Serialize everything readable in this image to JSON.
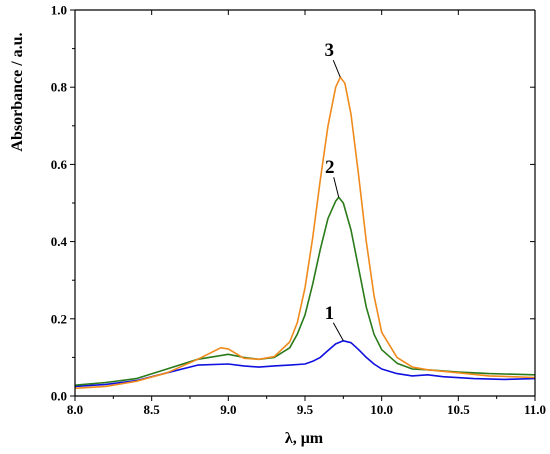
{
  "chart_data": {
    "type": "line",
    "xlabel": "λ, μm",
    "ylabel": "Absorbance / a.u.",
    "xlim": [
      8.0,
      11.0
    ],
    "ylim": [
      0.0,
      1.0
    ],
    "xticks": [
      "8.0",
      "8.5",
      "9.0",
      "9.5",
      "10.0",
      "10.5",
      "11.0"
    ],
    "yticks": [
      "0.0",
      "0.2",
      "0.4",
      "0.6",
      "0.8",
      "1.0"
    ],
    "grid": false,
    "curve_labels": [
      {
        "text": "1",
        "series": 0,
        "anchor_x": 9.75,
        "anchor_y": 0.143
      },
      {
        "text": "2",
        "series": 1,
        "anchor_x": 9.72,
        "anchor_y": 0.515
      },
      {
        "text": "3",
        "series": 2,
        "anchor_x": 9.73,
        "anchor_y": 0.826
      }
    ],
    "series": [
      {
        "color": "#1010e0",
        "x": [
          8.0,
          8.2,
          8.4,
          8.6,
          8.8,
          9.0,
          9.1,
          9.2,
          9.3,
          9.4,
          9.5,
          9.55,
          9.6,
          9.65,
          9.7,
          9.75,
          9.8,
          9.85,
          9.9,
          9.95,
          10.0,
          10.1,
          10.2,
          10.3,
          10.4,
          10.6,
          10.8,
          11.0
        ],
        "y": [
          0.025,
          0.03,
          0.04,
          0.06,
          0.08,
          0.083,
          0.078,
          0.075,
          0.078,
          0.08,
          0.083,
          0.09,
          0.1,
          0.118,
          0.135,
          0.143,
          0.138,
          0.12,
          0.1,
          0.083,
          0.07,
          0.058,
          0.052,
          0.055,
          0.05,
          0.045,
          0.043,
          0.045
        ]
      },
      {
        "color": "#2a7a1a",
        "x": [
          8.0,
          8.2,
          8.4,
          8.6,
          8.8,
          9.0,
          9.1,
          9.2,
          9.3,
          9.4,
          9.45,
          9.5,
          9.55,
          9.6,
          9.65,
          9.7,
          9.72,
          9.75,
          9.8,
          9.85,
          9.9,
          9.95,
          10.0,
          10.1,
          10.2,
          10.3,
          10.5,
          10.7,
          11.0
        ],
        "y": [
          0.028,
          0.035,
          0.045,
          0.07,
          0.095,
          0.108,
          0.1,
          0.095,
          0.1,
          0.125,
          0.16,
          0.21,
          0.29,
          0.38,
          0.46,
          0.505,
          0.515,
          0.5,
          0.43,
          0.33,
          0.23,
          0.16,
          0.12,
          0.085,
          0.07,
          0.068,
          0.062,
          0.058,
          0.055
        ]
      },
      {
        "color": "#f08a1c",
        "x": [
          8.0,
          8.2,
          8.4,
          8.6,
          8.8,
          8.95,
          9.0,
          9.1,
          9.2,
          9.3,
          9.4,
          9.45,
          9.5,
          9.55,
          9.6,
          9.65,
          9.7,
          9.73,
          9.76,
          9.8,
          9.85,
          9.9,
          9.95,
          10.0,
          10.1,
          10.2,
          10.3,
          10.5,
          10.7,
          11.0
        ],
        "y": [
          0.02,
          0.025,
          0.038,
          0.06,
          0.095,
          0.125,
          0.122,
          0.098,
          0.095,
          0.102,
          0.14,
          0.19,
          0.28,
          0.41,
          0.56,
          0.7,
          0.8,
          0.826,
          0.81,
          0.73,
          0.57,
          0.4,
          0.26,
          0.165,
          0.1,
          0.075,
          0.068,
          0.06,
          0.052,
          0.048
        ]
      }
    ]
  }
}
